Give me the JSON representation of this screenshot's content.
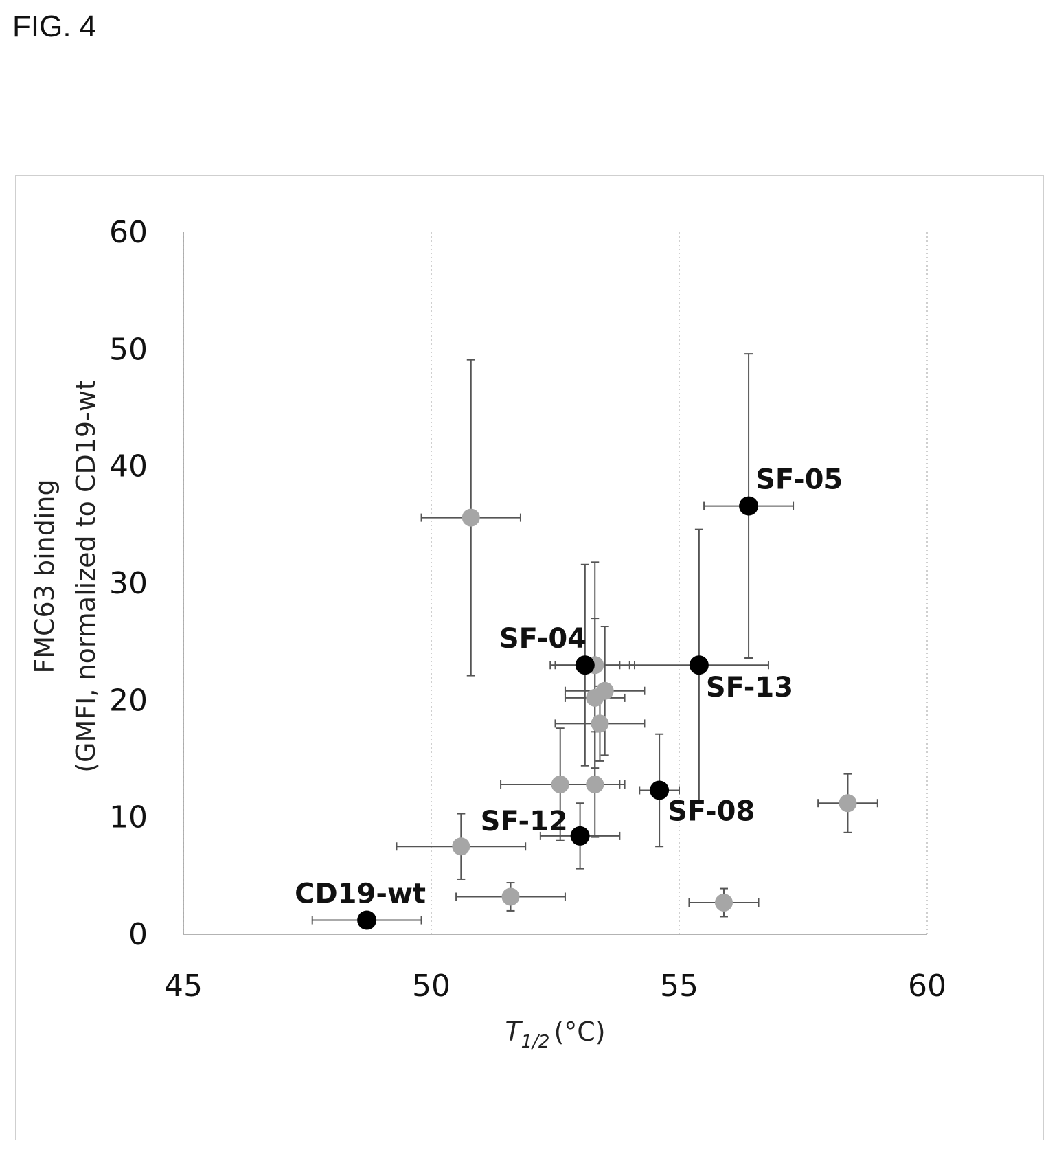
{
  "figure_label": "FIG. 4",
  "chart_data": {
    "type": "scatter",
    "title": "",
    "xlabel": {
      "base": "T",
      "subscript": "1/2",
      "unit": "(°C)"
    },
    "ylabel": [
      "FMC63  binding",
      "(GMFI, normalized to CD19-wt"
    ],
    "xlim": [
      45,
      60
    ],
    "ylim": [
      0,
      60
    ],
    "x_ticks": [
      "45",
      "50",
      "55",
      "60"
    ],
    "y_ticks": [
      "0",
      "10",
      "20",
      "30",
      "40",
      "50",
      "60"
    ],
    "grid": "vertical dotted",
    "colors": {
      "highlighted": "#000000",
      "other": "#a6a6a6",
      "error_bar": "#555555"
    },
    "points": [
      {
        "label": "CD19-wt",
        "x": 48.7,
        "y": 1.2,
        "xerr": 1.1,
        "yerr": 0,
        "highlight": true
      },
      {
        "label": "SF-12",
        "x": 53.0,
        "y": 8.4,
        "xerr": 0.8,
        "yerr": 2.8,
        "highlight": true
      },
      {
        "label": "SF-04",
        "x": 53.1,
        "y": 23.0,
        "xerr": 0.7,
        "yerr": 8.6,
        "highlight": true
      },
      {
        "label": "SF-08",
        "x": 54.6,
        "y": 12.3,
        "xerr": 0.4,
        "yerr": 4.8,
        "highlight": true
      },
      {
        "label": "SF-13",
        "x": 55.4,
        "y": 23.0,
        "xerr": 1.4,
        "yerr": 11.6,
        "highlight": true
      },
      {
        "label": "SF-05",
        "x": 56.4,
        "y": 36.6,
        "xerr": 0.9,
        "yerr": 13.0,
        "highlight": true
      },
      {
        "label": "",
        "x": 50.8,
        "y": 35.6,
        "xerr": 1.0,
        "yerr": 13.5,
        "highlight": false
      },
      {
        "label": "",
        "x": 50.6,
        "y": 7.5,
        "xerr": 1.3,
        "yerr": 2.8,
        "highlight": false
      },
      {
        "label": "",
        "x": 51.6,
        "y": 3.2,
        "xerr": 1.1,
        "yerr": 1.2,
        "highlight": false
      },
      {
        "label": "",
        "x": 52.6,
        "y": 12.8,
        "xerr": 1.2,
        "yerr": 4.8,
        "highlight": false
      },
      {
        "label": "",
        "x": 53.3,
        "y": 23.0,
        "xerr": 0.8,
        "yerr": 8.8,
        "highlight": false
      },
      {
        "label": "",
        "x": 53.3,
        "y": 20.2,
        "xerr": 0.6,
        "yerr": 6.8,
        "highlight": false
      },
      {
        "label": "",
        "x": 53.5,
        "y": 20.8,
        "xerr": 0.8,
        "yerr": 5.5,
        "highlight": false
      },
      {
        "label": "",
        "x": 53.4,
        "y": 18.0,
        "xerr": 0.9,
        "yerr": 3.2,
        "highlight": false
      },
      {
        "label": "",
        "x": 53.3,
        "y": 12.8,
        "xerr": 0.6,
        "yerr": 4.5,
        "highlight": false
      },
      {
        "label": "",
        "x": 55.9,
        "y": 2.7,
        "xerr": 0.7,
        "yerr": 1.2,
        "highlight": false
      },
      {
        "label": "",
        "x": 58.4,
        "y": 11.2,
        "xerr": 0.6,
        "yerr": 2.5,
        "highlight": false
      }
    ]
  }
}
